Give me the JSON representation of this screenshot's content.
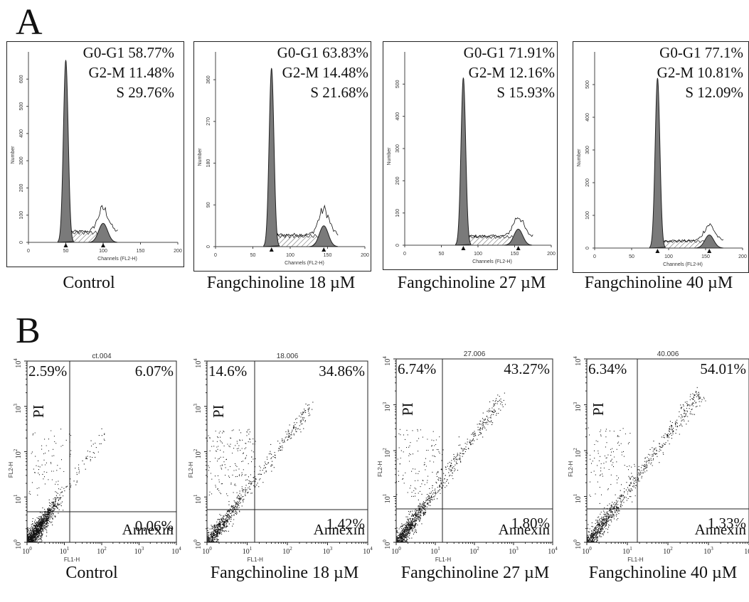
{
  "panel_labels": {
    "a": "A",
    "b": "B"
  },
  "section_a": {
    "x_axis_label": "Channels (FL2-H)",
    "y_axis_label": "Number",
    "x_ticks": [
      "0",
      "50",
      "100",
      "150",
      "200"
    ],
    "panels": [
      {
        "caption": "Control",
        "g0g1": "G0-G1 58.77%",
        "g2m": "G2-M 11.48%",
        "s": "S 29.76%",
        "y_ticks": [
          "0",
          "100",
          "200",
          "300",
          "400",
          "500",
          "600"
        ],
        "ymax": 700
      },
      {
        "caption": "Fangchinoline 18 µM",
        "g0g1": "G0-G1 63.83%",
        "g2m": "G2-M 14.48%",
        "s": "S 21.68%",
        "y_ticks": [
          "0",
          "90",
          "180",
          "270",
          "360"
        ],
        "ymax": 420
      },
      {
        "caption": "Fangchinoline 27 µM",
        "g0g1": "G0-G1 71.91%",
        "g2m": "G2-M 12.16%",
        "s": "S 15.93%",
        "y_ticks": [
          "0",
          "100",
          "200",
          "300",
          "400",
          "500"
        ],
        "ymax": 600
      },
      {
        "caption": "Fangchinoline 40 µM",
        "g0g1": "G0-G1 77.1%",
        "g2m": "G2-M 10.81%",
        "s": "S 12.09%",
        "y_ticks": [
          "0",
          "100",
          "200",
          "300",
          "400",
          "500"
        ],
        "ymax": 600
      }
    ]
  },
  "section_b": {
    "x_axis_label": "FL1-H",
    "y_axis_label": "FL2-H",
    "pi_label": "PI",
    "annexin_label": "Annexin",
    "panels": [
      {
        "title": "ct.004",
        "caption": "Control",
        "ul": "2.59%",
        "ur": "6.07%",
        "lr": "0.06%"
      },
      {
        "title": "18.006",
        "caption": "Fangchinoline 18 µM",
        "ul": "14.6%",
        "ur": "34.86%",
        "lr": "1.42%"
      },
      {
        "title": "27.006",
        "caption": "Fangchinoline 27 µM",
        "ul": "6.74%",
        "ur": "43.27%",
        "lr": "1.80%"
      },
      {
        "title": "40.006",
        "caption": "Fangchinoline 40 µM",
        "ul": "6.34%",
        "ur": "54.01%",
        "lr": "1.33%"
      }
    ]
  },
  "chart_data": [
    {
      "type": "area",
      "title": "Control",
      "xlabel": "Channels (FL2-H)",
      "ylabel": "Number",
      "xlim": [
        0,
        200
      ],
      "ylim": [
        0,
        700
      ],
      "series": [
        {
          "name": "G0-G1",
          "peak_x": 50,
          "peak_y": 670
        },
        {
          "name": "G2-M",
          "peak_x": 100,
          "peak_y": 70
        }
      ],
      "phases": {
        "G0-G1": 58.77,
        "G2-M": 11.48,
        "S": 29.76
      }
    },
    {
      "type": "area",
      "title": "Fangchinoline 18 µM",
      "xlabel": "Channels (FL2-H)",
      "ylabel": "Number",
      "xlim": [
        0,
        200
      ],
      "ylim": [
        0,
        420
      ],
      "series": [
        {
          "name": "G0-G1",
          "peak_x": 75,
          "peak_y": 385
        },
        {
          "name": "G2-M",
          "peak_x": 145,
          "peak_y": 45
        }
      ],
      "phases": {
        "G0-G1": 63.83,
        "G2-M": 14.48,
        "S": 21.68
      }
    },
    {
      "type": "area",
      "title": "Fangchinoline 27 µM",
      "xlabel": "Channels (FL2-H)",
      "ylabel": "Number",
      "xlim": [
        0,
        200
      ],
      "ylim": [
        0,
        600
      ],
      "series": [
        {
          "name": "G0-G1",
          "peak_x": 80,
          "peak_y": 520
        },
        {
          "name": "G2-M",
          "peak_x": 155,
          "peak_y": 50
        }
      ],
      "phases": {
        "G0-G1": 71.91,
        "G2-M": 12.16,
        "S": 15.93
      }
    },
    {
      "type": "area",
      "title": "Fangchinoline 40 µM",
      "xlabel": "Channels (FL2-H)",
      "ylabel": "Number",
      "xlim": [
        0,
        200
      ],
      "ylim": [
        0,
        600
      ],
      "series": [
        {
          "name": "G0-G1",
          "peak_x": 85,
          "peak_y": 520
        },
        {
          "name": "G2-M",
          "peak_x": 155,
          "peak_y": 40
        }
      ],
      "phases": {
        "G0-G1": 77.1,
        "G2-M": 10.81,
        "S": 12.09
      }
    },
    {
      "type": "scatter",
      "title": "ct.004",
      "xlabel": "FL1-H",
      "ylabel": "FL2-H",
      "xscale": "log",
      "yscale": "log",
      "xlim": [
        1,
        10000
      ],
      "ylim": [
        1,
        10000
      ],
      "quadrants": {
        "upper_left": 2.59,
        "upper_right": 6.07,
        "lower_right": 0.06
      }
    },
    {
      "type": "scatter",
      "title": "18.006",
      "xlabel": "FL1-H",
      "ylabel": "FL2-H",
      "xscale": "log",
      "yscale": "log",
      "xlim": [
        1,
        10000
      ],
      "ylim": [
        1,
        10000
      ],
      "quadrants": {
        "upper_left": 14.6,
        "upper_right": 34.86,
        "lower_right": 1.42
      }
    },
    {
      "type": "scatter",
      "title": "27.006",
      "xlabel": "FL1-H",
      "ylabel": "FL2-H",
      "xscale": "log",
      "yscale": "log",
      "xlim": [
        1,
        10000
      ],
      "ylim": [
        1,
        10000
      ],
      "quadrants": {
        "upper_left": 6.74,
        "upper_right": 43.27,
        "lower_right": 1.8
      }
    },
    {
      "type": "scatter",
      "title": "40.006",
      "xlabel": "FL1-H",
      "ylabel": "FL2-H",
      "xscale": "log",
      "yscale": "log",
      "xlim": [
        1,
        10000
      ],
      "ylim": [
        1,
        10000
      ],
      "quadrants": {
        "upper_left": 6.34,
        "upper_right": 54.01,
        "lower_right": 1.33
      }
    }
  ]
}
